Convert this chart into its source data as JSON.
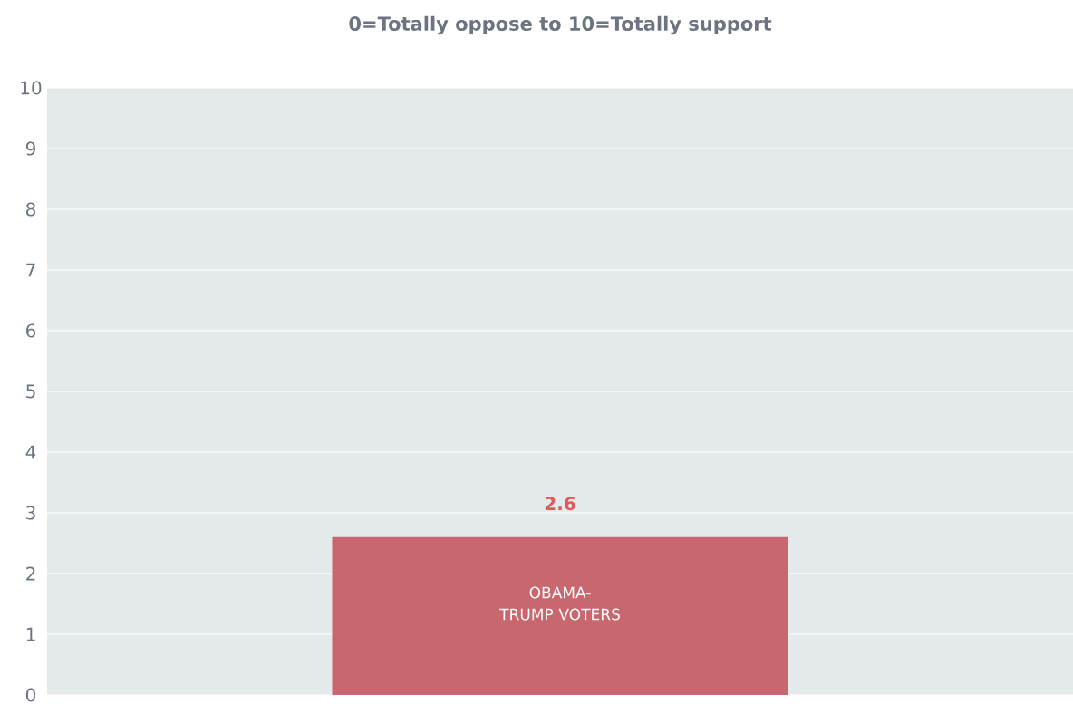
{
  "chart_data": {
    "type": "bar",
    "title": "0=Totally oppose    to   10=Totally support",
    "categories": [
      "OBAMA-TRUMP VOTERS"
    ],
    "values": [
      2.6
    ],
    "color": "#c8676d",
    "ylim": [
      0,
      10
    ],
    "yticks": [
      0,
      1,
      2,
      3,
      4,
      5,
      6,
      7,
      8,
      9,
      10
    ],
    "grid": "y",
    "data_labels": true
  }
}
